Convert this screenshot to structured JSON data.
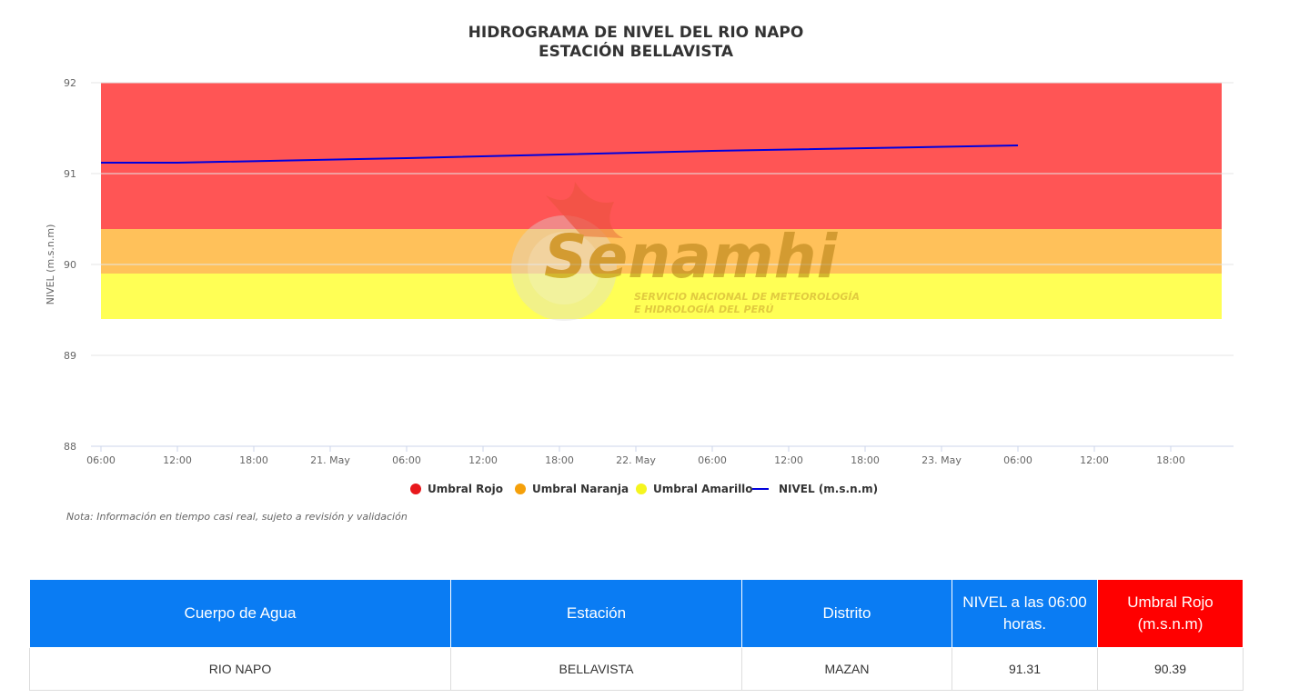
{
  "chart_data": {
    "type": "line",
    "title_line1": "HIDROGRAMA DE NIVEL DEL RIO NAPO",
    "title_line2": "ESTACIÓN BELLAVISTA",
    "ylabel": "NIVEL (m.s.n.m)",
    "xlabel": "",
    "ylim": [
      88,
      92
    ],
    "yticks": [
      "88",
      "89",
      "90",
      "91",
      "92"
    ],
    "xlim": [
      "2024-05-20 06:00",
      "2024-05-23 22:00"
    ],
    "xticks": [
      {
        "t": "2024-05-20 06:00",
        "label": "06:00"
      },
      {
        "t": "2024-05-20 12:00",
        "label": "12:00"
      },
      {
        "t": "2024-05-20 18:00",
        "label": "18:00"
      },
      {
        "t": "2024-05-21 00:00",
        "label": "21. May"
      },
      {
        "t": "2024-05-21 06:00",
        "label": "06:00"
      },
      {
        "t": "2024-05-21 12:00",
        "label": "12:00"
      },
      {
        "t": "2024-05-21 18:00",
        "label": "18:00"
      },
      {
        "t": "2024-05-22 00:00",
        "label": "22. May"
      },
      {
        "t": "2024-05-22 06:00",
        "label": "06:00"
      },
      {
        "t": "2024-05-22 12:00",
        "label": "12:00"
      },
      {
        "t": "2024-05-22 18:00",
        "label": "18:00"
      },
      {
        "t": "2024-05-23 00:00",
        "label": "23. May"
      },
      {
        "t": "2024-05-23 06:00",
        "label": "06:00"
      },
      {
        "t": "2024-05-23 12:00",
        "label": "12:00"
      },
      {
        "t": "2024-05-23 18:00",
        "label": "18:00"
      }
    ],
    "grid": true,
    "legend_position": "bottom-center",
    "bands": [
      {
        "name": "Umbral Rojo",
        "from": 90.39,
        "to": 92,
        "color": "#ff5555",
        "marker": "#e8181c"
      },
      {
        "name": "Umbral Naranja",
        "from": 89.9,
        "to": 90.39,
        "color": "#ffc15a",
        "marker": "#f5a00a"
      },
      {
        "name": "Umbral Amarillo",
        "from": 89.4,
        "to": 89.9,
        "color": "#ffff55",
        "marker": "#f5f51e"
      }
    ],
    "series": [
      {
        "name": "NIVEL (m.s.n.m)",
        "color": "#0000dd",
        "points": [
          {
            "t": "2024-05-20 06:00",
            "y": 91.12
          },
          {
            "t": "2024-05-20 12:00",
            "y": 91.12
          },
          {
            "t": "2024-05-21 06:00",
            "y": 91.17
          },
          {
            "t": "2024-05-22 06:00",
            "y": 91.25
          },
          {
            "t": "2024-05-23 06:00",
            "y": 91.31
          }
        ]
      }
    ],
    "note": "Nota: Información en tiempo casi real, sujeto a revisión y validación",
    "watermark": {
      "text": "Senamhi",
      "subtitle_line1": "SERVICIO NACIONAL DE METEOROLOGÍA",
      "subtitle_line2": "E HIDROLOGÍA DEL PERÚ"
    }
  },
  "table": {
    "headers": [
      "Cuerpo de Agua",
      "Estación",
      "Distrito",
      "NIVEL a las 06:00 horas.",
      "Umbral Rojo (m.s.n.m)"
    ],
    "row": [
      "RIO NAPO",
      "BELLAVISTA",
      "MAZAN",
      "91.31",
      "90.39"
    ]
  }
}
